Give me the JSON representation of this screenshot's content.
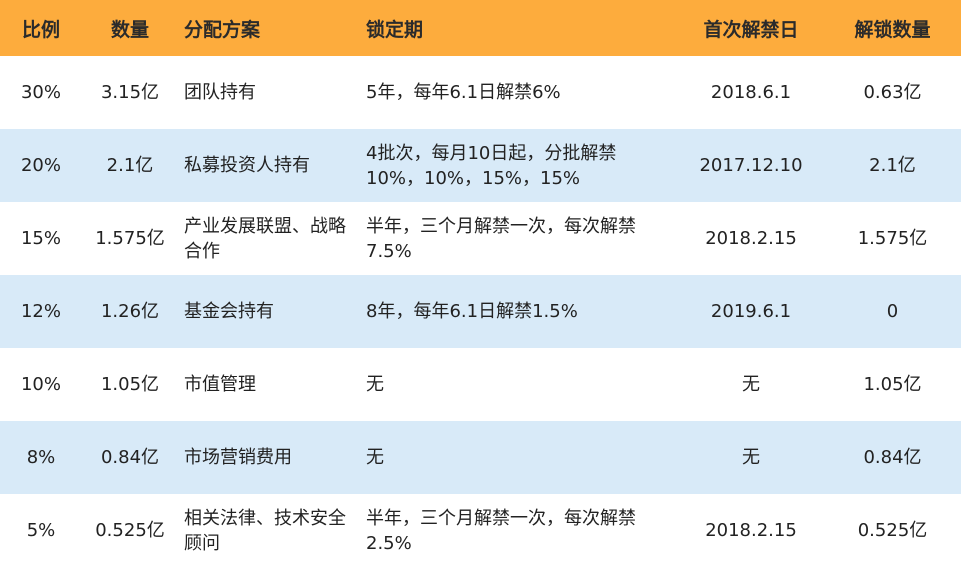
{
  "headers": [
    "比例",
    "数量",
    "分配方案",
    "锁定期",
    "首次解禁日",
    "解锁数量"
  ],
  "rows": [
    {
      "ratio": "30%",
      "amount": "3.15亿",
      "plan": "团队持有",
      "lock": "5年，每年6.1日解禁6%",
      "first_unlock": "2018.6.1",
      "unlock_amount": "0.63亿"
    },
    {
      "ratio": "20%",
      "amount": "2.1亿",
      "plan": "私募投资人持有",
      "lock": "4批次，每月10日起，分批解禁10%，10%，15%，15%",
      "first_unlock": "2017.12.10",
      "unlock_amount": "2.1亿"
    },
    {
      "ratio": "15%",
      "amount": "1.575亿",
      "plan": "产业发展联盟、战略合作",
      "lock": "半年，三个月解禁一次，每次解禁7.5%",
      "first_unlock": "2018.2.15",
      "unlock_amount": "1.575亿"
    },
    {
      "ratio": "12%",
      "amount": "1.26亿",
      "plan": "基金会持有",
      "lock": "8年，每年6.1日解禁1.5%",
      "first_unlock": "2019.6.1",
      "unlock_amount": "0"
    },
    {
      "ratio": "10%",
      "amount": "1.05亿",
      "plan": "市值管理",
      "lock": "无",
      "first_unlock": "无",
      "unlock_amount": "1.05亿"
    },
    {
      "ratio": "8%",
      "amount": "0.84亿",
      "plan": "市场营销费用",
      "lock": "无",
      "first_unlock": "无",
      "unlock_amount": "0.84亿"
    },
    {
      "ratio": "5%",
      "amount": "0.525亿",
      "plan": "相关法律、技术安全顾问",
      "lock": "半年，三个月解禁一次，每次解禁2.5%",
      "first_unlock": "2018.2.15",
      "unlock_amount": "0.525亿"
    }
  ],
  "colors": {
    "header_bg": "#fdac3d",
    "stripe_bg": "#d8eaf8"
  }
}
